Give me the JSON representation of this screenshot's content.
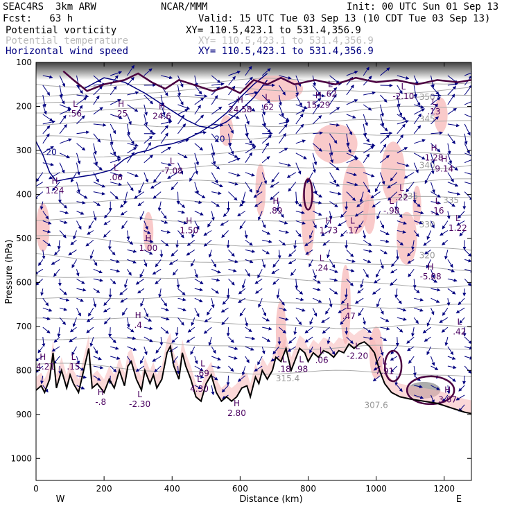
{
  "header": {
    "model": "SEAC4RS  3km ARW",
    "org": "NCAR/MMM",
    "init": "Init: 00 UTC Sun 01 Sep 13",
    "fcst": "Fcst:   63 h",
    "valid": "Valid: 15 UTC Tue 03 Sep 13 (10 CDT Tue 03 Sep 13)",
    "fields": [
      {
        "label": "Potential vorticity",
        "xy": "XY= 110.5,423.1 to 531.4,356.9",
        "color": "#000000"
      },
      {
        "label": "Potential temperature",
        "xy": "XY= 110.5,423.1 to 531.4,356.9",
        "color": "#bbbbbb"
      },
      {
        "label": "Horizontal wind speed",
        "xy": "XY= 110.5,423.1 to 531.4,356.9",
        "color": "#000080"
      }
    ]
  },
  "chart_data": {
    "type": "cross-section",
    "xlabel": "Distance (km)",
    "ylabel": "Pressure (hPa)",
    "xlim": [
      0,
      1280
    ],
    "ylim": [
      1050,
      100
    ],
    "x_ticks": [
      "0",
      "200",
      "400",
      "600",
      "800",
      "1000",
      "1200"
    ],
    "y_ticks": [
      "100",
      "200",
      "300",
      "400",
      "500",
      "600",
      "700",
      "800",
      "900",
      "1000"
    ],
    "endpoints": {
      "left": "W",
      "right": "E"
    },
    "colors": {
      "pv_shading": "#f7b8b8",
      "theta": "#aaaaaa",
      "wind": "#000080",
      "pv_contour": "#4a0040",
      "terrain": "#000000"
    },
    "theta_labels": [
      {
        "text": "350",
        "x": 1150,
        "p": 185
      },
      {
        "text": "345",
        "x": 1150,
        "p": 235
      },
      {
        "text": "340",
        "x": 1150,
        "p": 340
      },
      {
        "text": "335",
        "x": 1100,
        "p": 410
      },
      {
        "text": "335",
        "x": 1220,
        "p": 420
      },
      {
        "text": "330",
        "x": 1150,
        "p": 475
      },
      {
        "text": "320",
        "x": 1150,
        "p": 545
      },
      {
        "text": "315.4",
        "x": 740,
        "p": 825
      },
      {
        "text": "307.6",
        "x": 1000,
        "p": 885
      }
    ],
    "wind_labels": [
      {
        "text": "20",
        "x": 45,
        "p": 310
      },
      {
        "text": "20",
        "x": 540,
        "p": 280
      }
    ],
    "extrema": [
      {
        "mark": "L",
        "value": ".56",
        "x": 115,
        "p": 220
      },
      {
        "mark": "H",
        "value": ".25",
        "x": 250,
        "p": 220
      },
      {
        "mark": "H",
        "value": "24.6",
        "x": 370,
        "p": 225
      },
      {
        "mark": "H",
        "value": "24.58",
        "x": 600,
        "p": 210
      },
      {
        "mark": "L",
        "value": ".62",
        "x": 680,
        "p": 205
      },
      {
        "mark": "L",
        "value": ".62",
        "x": 865,
        "p": 175
      },
      {
        "mark": "H",
        "value": "15.29",
        "x": 830,
        "p": 200
      },
      {
        "mark": "L",
        "value": "-2.10",
        "x": 1080,
        "p": 180
      },
      {
        "mark": "L",
        "value": ".13",
        "x": 1170,
        "p": 215
      },
      {
        "mark": "H",
        "value": "1.28",
        "x": 1170,
        "p": 320
      },
      {
        "mark": "H",
        "value": "9.14",
        "x": 1200,
        "p": 345
      },
      {
        "mark": "L",
        "value": ".06",
        "x": 235,
        "p": 365
      },
      {
        "mark": "L",
        "value": "-7.08",
        "x": 400,
        "p": 350
      },
      {
        "mark": "H",
        "value": "1.24",
        "x": 55,
        "p": 395
      },
      {
        "mark": "H",
        "value": ".89",
        "x": 705,
        "p": 440
      },
      {
        "mark": "L",
        "value": "-.98",
        "x": 1045,
        "p": 440
      },
      {
        "mark": "L",
        "value": ".22",
        "x": 1075,
        "p": 410
      },
      {
        "mark": "L",
        "value": ".16",
        "x": 1180,
        "p": 440
      },
      {
        "mark": "L",
        "value": "1.22",
        "x": 1240,
        "p": 480
      },
      {
        "mark": "H",
        "value": "1.73",
        "x": 860,
        "p": 485
      },
      {
        "mark": "L",
        "value": ".17",
        "x": 930,
        "p": 485
      },
      {
        "mark": "H",
        "value": "1.50",
        "x": 450,
        "p": 485
      },
      {
        "mark": "H",
        "value": "1.00",
        "x": 330,
        "p": 525
      },
      {
        "mark": "L",
        "value": ".24",
        "x": 840,
        "p": 570
      },
      {
        "mark": "H",
        "value": "-5.08",
        "x": 1160,
        "p": 590
      },
      {
        "mark": "H",
        "value": ".4",
        "x": 300,
        "p": 700
      },
      {
        "mark": "L",
        "value": ".47",
        "x": 920,
        "p": 680
      },
      {
        "mark": "L",
        "value": ".42",
        "x": 1245,
        "p": 715
      },
      {
        "mark": "H",
        "value": "14.21",
        "x": 20,
        "p": 795
      },
      {
        "mark": "L",
        "value": ".15",
        "x": 110,
        "p": 795
      },
      {
        "mark": "L",
        "value": ".18",
        "x": 730,
        "p": 800
      },
      {
        "mark": "L",
        "value": ".98",
        "x": 780,
        "p": 800
      },
      {
        "mark": "L",
        "value": ".06",
        "x": 840,
        "p": 780
      },
      {
        "mark": "L",
        "value": "-2.20",
        "x": 945,
        "p": 770
      },
      {
        "mark": "L",
        "value": "7.91",
        "x": 1025,
        "p": 805
      },
      {
        "mark": "L",
        "value": ".69",
        "x": 490,
        "p": 810
      },
      {
        "mark": "L",
        "value": "4.30",
        "x": 480,
        "p": 845
      },
      {
        "mark": "H",
        "value": "-.8",
        "x": 190,
        "p": 875
      },
      {
        "mark": "L",
        "value": "-2.30",
        "x": 305,
        "p": 880
      },
      {
        "mark": "H",
        "value": "2.80",
        "x": 590,
        "p": 900
      },
      {
        "mark": "H",
        "value": "3.67",
        "x": 1210,
        "p": 870
      }
    ]
  }
}
